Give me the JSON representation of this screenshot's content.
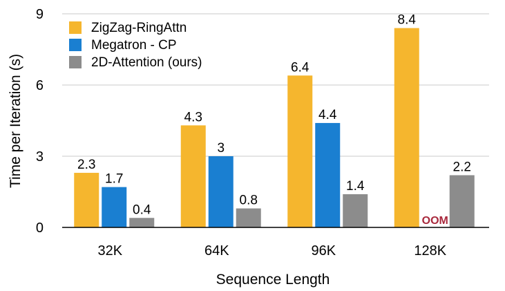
{
  "chart_data": {
    "type": "bar",
    "title": "",
    "xlabel": "Sequence Length",
    "ylabel": "Time per Iteration (s)",
    "ylim": [
      0,
      9
    ],
    "yticks": [
      0,
      3,
      6,
      9
    ],
    "grid": "horizontal",
    "legend_position": "top-left",
    "categories": [
      "32K",
      "64K",
      "96K",
      "128K"
    ],
    "series": [
      {
        "name": "ZigZag-RingAttn",
        "color": "#f5b62e",
        "values": [
          2.3,
          4.3,
          6.4,
          8.4
        ],
        "labels": [
          "2.3",
          "4.3",
          "6.4",
          "8.4"
        ]
      },
      {
        "name": "Megatron - CP",
        "color": "#1a7fd1",
        "values": [
          1.7,
          3,
          4.4,
          null
        ],
        "labels": [
          "1.7",
          "3",
          "4.4",
          ""
        ]
      },
      {
        "name": "2D-Attention (ours)",
        "color": "#8c8c8c",
        "values": [
          0.4,
          0.8,
          1.4,
          2.2
        ],
        "labels": [
          "0.4",
          "0.8",
          "1.4",
          "2.2"
        ]
      }
    ],
    "annotations": [
      {
        "text": "OOM",
        "series": "Megatron - CP",
        "category": "128K",
        "color": "#a8283c"
      }
    ]
  }
}
